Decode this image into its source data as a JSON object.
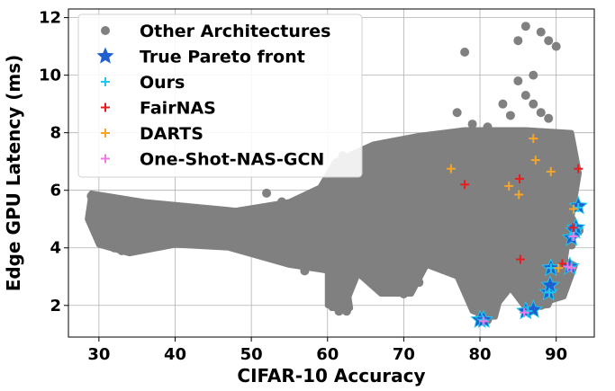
{
  "chart_data": {
    "type": "scatter",
    "title": "",
    "xlabel": "CIFAR-10 Accuracy",
    "ylabel": "Edge GPU Latency (ms)",
    "xlim": [
      26,
      95
    ],
    "ylim": [
      0.9,
      12.3
    ],
    "x_ticks": [
      30,
      40,
      50,
      60,
      70,
      80,
      90
    ],
    "y_ticks": [
      2,
      4,
      6,
      8,
      10,
      12
    ],
    "grid": true,
    "legend_position": "top-left",
    "legend": [
      {
        "label": "Other Architectures",
        "marker": "circle",
        "color": "#808080"
      },
      {
        "label": "True Pareto front",
        "marker": "star",
        "color": "#1f5fd0"
      },
      {
        "label": "Ours",
        "marker": "plus",
        "color": "#1ec8f0"
      },
      {
        "label": "FairNAS",
        "marker": "plus",
        "color": "#e81c1c"
      },
      {
        "label": "DARTS",
        "marker": "plus",
        "color": "#f4a52a"
      },
      {
        "label": "One-Shot-NAS-GCN",
        "marker": "plus",
        "color": "#ef7ae6"
      }
    ],
    "series": [
      {
        "name": "Other Architectures",
        "points": [
          [
            29,
            5.8
          ],
          [
            29.5,
            5.3
          ],
          [
            30.5,
            4.9
          ],
          [
            31,
            4.6
          ],
          [
            32,
            4.3
          ],
          [
            32,
            4.0
          ],
          [
            33,
            3.9
          ],
          [
            34,
            4.2
          ],
          [
            35,
            5.4
          ],
          [
            37,
            4.9
          ],
          [
            39,
            4.4
          ],
          [
            39,
            4.7
          ],
          [
            40,
            4.5
          ],
          [
            41,
            5.0
          ],
          [
            42,
            4.8
          ],
          [
            44,
            4.4
          ],
          [
            45,
            4.6
          ],
          [
            46,
            4.3
          ],
          [
            47,
            4.8
          ],
          [
            48,
            4.5
          ],
          [
            49,
            5.2
          ],
          [
            50,
            4.8
          ],
          [
            51,
            5.3
          ],
          [
            52,
            5.9
          ],
          [
            53,
            5.2
          ],
          [
            54,
            5.6
          ],
          [
            55,
            5.1
          ],
          [
            56,
            3.8
          ],
          [
            57,
            3.2
          ],
          [
            58,
            3.9
          ],
          [
            59,
            3.7
          ],
          [
            60,
            3.5
          ],
          [
            61,
            2.8
          ],
          [
            61,
            2.4
          ],
          [
            62,
            2.0
          ],
          [
            61.5,
            1.8
          ],
          [
            62.5,
            1.8
          ],
          [
            60.5,
            6.6
          ],
          [
            62,
            7.2
          ],
          [
            63,
            7.0
          ],
          [
            64,
            6.7
          ],
          [
            65,
            7.3
          ],
          [
            66,
            6.5
          ],
          [
            67,
            6.0
          ],
          [
            68,
            6.8
          ],
          [
            69,
            6.4
          ],
          [
            69,
            2.5
          ],
          [
            70,
            2.4
          ],
          [
            72,
            2.8
          ],
          [
            73,
            3.8
          ],
          [
            74,
            3.4
          ],
          [
            75,
            6.2
          ],
          [
            76,
            5.8
          ],
          [
            77,
            6.3
          ],
          [
            78,
            5.0
          ],
          [
            76,
            7.4
          ],
          [
            77,
            8.7
          ],
          [
            79,
            8.3
          ],
          [
            80,
            7.9
          ],
          [
            81,
            7.6
          ],
          [
            82,
            8.0
          ],
          [
            83,
            7.8
          ],
          [
            84,
            7.4
          ],
          [
            85,
            7.7
          ],
          [
            86,
            7.2
          ],
          [
            87,
            6.9
          ],
          [
            88,
            7.1
          ],
          [
            89,
            7.3
          ],
          [
            90,
            7.0
          ],
          [
            91,
            6.8
          ],
          [
            92,
            6.6
          ],
          [
            71,
            4.2
          ],
          [
            72,
            4.8
          ],
          [
            73,
            5.2
          ],
          [
            74,
            4.6
          ],
          [
            75,
            4.0
          ],
          [
            76,
            3.9
          ],
          [
            77,
            3.5
          ],
          [
            78,
            3.2
          ],
          [
            79,
            3.0
          ],
          [
            80,
            2.9
          ],
          [
            80,
            2.3
          ],
          [
            81,
            2.2
          ],
          [
            82,
            3.1
          ],
          [
            83,
            3.4
          ],
          [
            84,
            3.6
          ],
          [
            85,
            3.3
          ],
          [
            86,
            3.0
          ],
          [
            87,
            2.6
          ],
          [
            88,
            2.4
          ],
          [
            89,
            2.2
          ],
          [
            90,
            3.5
          ],
          [
            91,
            3.0
          ],
          [
            92,
            3.2
          ],
          [
            90,
            4.3
          ],
          [
            91,
            5.2
          ],
          [
            92,
            5.0
          ],
          [
            85,
            6.5
          ],
          [
            86,
            6.0
          ],
          [
            87,
            5.5
          ],
          [
            88,
            5.0
          ],
          [
            89,
            4.5
          ],
          [
            90,
            5.8
          ],
          [
            91,
            6.2
          ],
          [
            68,
            5.5
          ],
          [
            69,
            5.0
          ],
          [
            70,
            4.5
          ],
          [
            71,
            6.3
          ],
          [
            72,
            6.8
          ],
          [
            73,
            7.1
          ],
          [
            66,
            4.0
          ],
          [
            67,
            4.3
          ],
          [
            65,
            3.8
          ],
          [
            64,
            3.5
          ],
          [
            63,
            4.6
          ],
          [
            62,
            5.3
          ],
          [
            78,
            10.8
          ],
          [
            85,
            11.2
          ],
          [
            86,
            11.7
          ],
          [
            88,
            11.5
          ],
          [
            89,
            11.2
          ],
          [
            90,
            11.0
          ],
          [
            86,
            9.3
          ],
          [
            87,
            9.0
          ],
          [
            88,
            8.7
          ],
          [
            89,
            8.5
          ],
          [
            81,
            8.2
          ],
          [
            84,
            8.6
          ],
          [
            83,
            9.0
          ],
          [
            85,
            9.8
          ],
          [
            87,
            10.0
          ],
          [
            91,
            5.5
          ],
          [
            90,
            6.6
          ],
          [
            79,
            3.8
          ],
          [
            80,
            4.6
          ],
          [
            81,
            5.4
          ],
          [
            82,
            6.1
          ],
          [
            83,
            6.6
          ],
          [
            84,
            5.9
          ],
          [
            80,
            1.6
          ],
          [
            81,
            1.5
          ],
          [
            86,
            1.8
          ],
          [
            87,
            1.9
          ],
          [
            88,
            2.0
          ],
          [
            89,
            2.9
          ],
          [
            90,
            3.4
          ],
          [
            91,
            3.6
          ],
          [
            92,
            4.1
          ],
          [
            93,
            4.6
          ]
        ]
      },
      {
        "name": "True Pareto front",
        "points": [
          [
            80.0,
            1.5
          ],
          [
            80.5,
            1.5
          ],
          [
            86.0,
            1.8
          ],
          [
            87.0,
            1.85
          ],
          [
            89.0,
            2.45
          ],
          [
            89.2,
            2.7
          ],
          [
            89.3,
            3.3
          ],
          [
            91.8,
            3.35
          ],
          [
            92.0,
            4.35
          ],
          [
            92.4,
            4.6
          ],
          [
            92.6,
            4.7
          ],
          [
            92.9,
            5.45
          ]
        ]
      },
      {
        "name": "Ours",
        "points": [
          [
            80.4,
            1.5
          ],
          [
            86.3,
            1.8
          ],
          [
            89.1,
            2.45
          ],
          [
            89.3,
            3.3
          ],
          [
            92.0,
            3.35
          ],
          [
            92.1,
            4.4
          ],
          [
            92.6,
            4.7
          ],
          [
            92.9,
            5.4
          ]
        ]
      },
      {
        "name": "FairNAS",
        "points": [
          [
            78.0,
            6.2
          ],
          [
            85.2,
            6.4
          ],
          [
            92.9,
            6.75
          ],
          [
            85.3,
            3.6
          ],
          [
            90.8,
            3.45
          ],
          [
            92.2,
            4.7
          ]
        ]
      },
      {
        "name": "DARTS",
        "points": [
          [
            76.2,
            6.75
          ],
          [
            83.8,
            6.15
          ],
          [
            85.1,
            5.85
          ],
          [
            87.0,
            7.8
          ],
          [
            87.3,
            7.05
          ],
          [
            89.3,
            6.65
          ],
          [
            90.3,
            3.3
          ],
          [
            92.3,
            5.35
          ]
        ]
      },
      {
        "name": "One-Shot-NAS-GCN",
        "points": [
          [
            80.5,
            1.45
          ],
          [
            85.8,
            1.75
          ],
          [
            91.5,
            3.35
          ],
          [
            92.0,
            3.3
          ],
          [
            92.3,
            4.4
          ]
        ]
      }
    ]
  }
}
